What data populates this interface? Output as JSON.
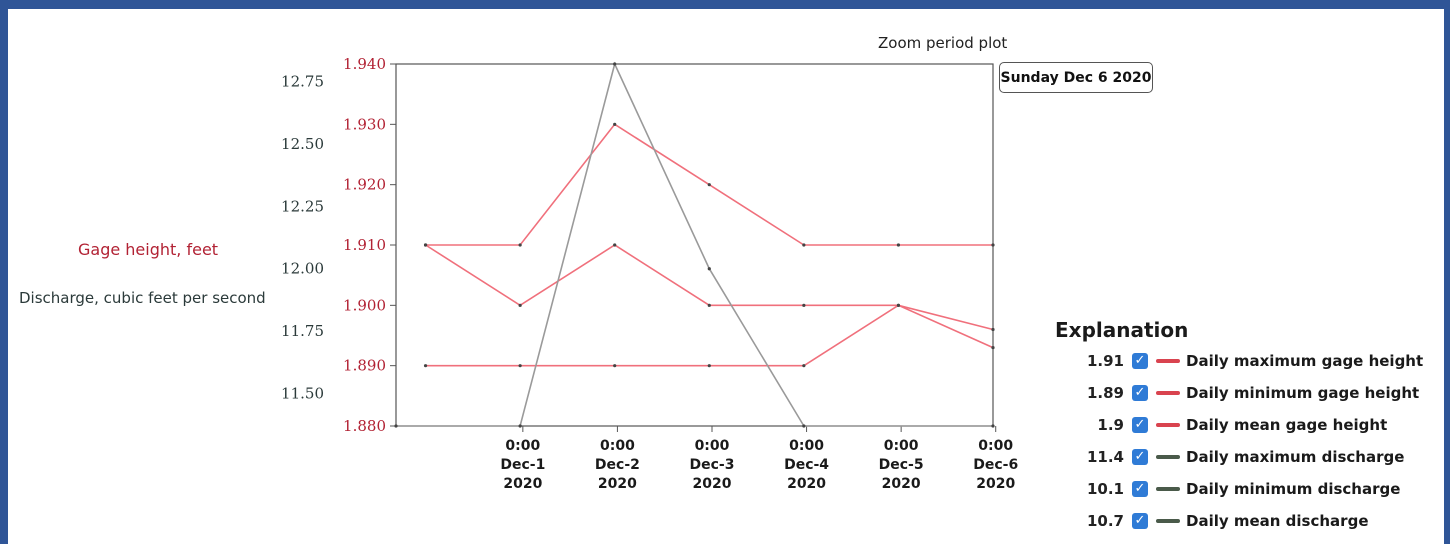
{
  "header": {
    "zoom_title": "Zoom period plot",
    "selected_date": "Sunday Dec 6 2020"
  },
  "axis_labels": {
    "gage": "Gage height, feet",
    "discharge": "Discharge, cubic feet per second"
  },
  "colors": {
    "gage": "#f0707c",
    "gage_text": "#b22234",
    "discharge": "#9a9a9a",
    "discharge_text": "#2b3a3a",
    "checkbox": "#2f7bd6"
  },
  "explanation": {
    "title": "Explanation",
    "items": [
      {
        "value": "1.91",
        "label": "Daily maximum gage height",
        "color": "#d9434f"
      },
      {
        "value": "1.89",
        "label": "Daily minimum gage height",
        "color": "#d9434f"
      },
      {
        "value": "1.9",
        "label": "Daily mean gage height",
        "color": "#d9434f"
      },
      {
        "value": "11.4",
        "label": "Daily maximum discharge",
        "color": "#4a5a4a"
      },
      {
        "value": "10.1",
        "label": "Daily minimum discharge",
        "color": "#4a5a4a"
      },
      {
        "value": "10.7",
        "label": "Daily mean discharge",
        "color": "#4a5a4a"
      }
    ]
  },
  "chart_data": {
    "type": "line",
    "x_tick_labels": [
      [
        "0:00",
        "Dec-1",
        "2020"
      ],
      [
        "0:00",
        "Dec-2",
        "2020"
      ],
      [
        "0:00",
        "Dec-3",
        "2020"
      ],
      [
        "0:00",
        "Dec-4",
        "2020"
      ],
      [
        "0:00",
        "Dec-5",
        "2020"
      ],
      [
        "0:00",
        "Dec-6",
        "2020"
      ]
    ],
    "xlim": [
      "2020-11-30T04:30",
      "2020-12-06T12:00"
    ],
    "left_axis": {
      "ylim": [
        1.88,
        1.94
      ],
      "ticks": [
        "1.880",
        "1.890",
        "1.900",
        "1.910",
        "1.920",
        "1.930",
        "1.940"
      ],
      "label": "Gage height, feet"
    },
    "right_axis": {
      "ylim": [
        11.37,
        12.82
      ],
      "ticks": [
        "11.50",
        "11.75",
        "12.00",
        "12.25",
        "12.50",
        "12.75"
      ],
      "label": "Discharge, cubic feet per second"
    },
    "grid": false,
    "legend": "right",
    "series": [
      {
        "name": "Daily maximum gage height",
        "axis": "left",
        "points": [
          [
            "2020-11-30T12:00",
            1.91
          ],
          [
            "2020-12-01T12:00",
            1.91
          ],
          [
            "2020-12-02T12:00",
            1.93
          ],
          [
            "2020-12-03T12:00",
            1.92
          ],
          [
            "2020-12-04T12:00",
            1.91
          ],
          [
            "2020-12-05T12:00",
            1.91
          ],
          [
            "2020-12-06T12:00",
            1.91
          ]
        ]
      },
      {
        "name": "Daily mean gage height",
        "axis": "left",
        "points": [
          [
            "2020-11-30T12:00",
            1.91
          ],
          [
            "2020-12-01T12:00",
            1.9
          ],
          [
            "2020-12-02T12:00",
            1.91
          ],
          [
            "2020-12-03T12:00",
            1.9
          ],
          [
            "2020-12-04T12:00",
            1.9
          ],
          [
            "2020-12-05T12:00",
            1.9
          ],
          [
            "2020-12-06T12:00",
            1.896
          ]
        ]
      },
      {
        "name": "Daily minimum gage height",
        "axis": "left",
        "points": [
          [
            "2020-11-30T12:00",
            1.89
          ],
          [
            "2020-12-01T12:00",
            1.89
          ],
          [
            "2020-12-02T12:00",
            1.89
          ],
          [
            "2020-12-03T12:00",
            1.89
          ],
          [
            "2020-12-04T12:00",
            1.89
          ],
          [
            "2020-12-05T12:00",
            1.9
          ],
          [
            "2020-12-06T12:00",
            1.893
          ]
        ]
      },
      {
        "name": "Daily discharge",
        "axis": "right",
        "points": [
          [
            "2020-11-30T04:30",
            11.37
          ],
          [
            "2020-12-01T12:00",
            11.37
          ],
          [
            "2020-12-02T12:00",
            12.82
          ],
          [
            "2020-12-03T12:00",
            12.0
          ],
          [
            "2020-12-04T12:00",
            11.37
          ],
          [
            "2020-12-06T12:00",
            11.37
          ]
        ]
      }
    ]
  }
}
